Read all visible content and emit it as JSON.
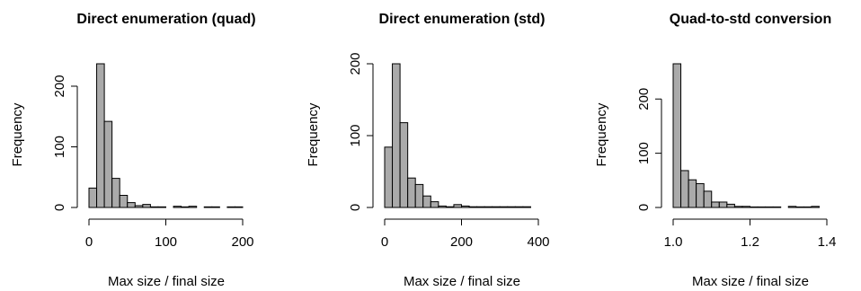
{
  "chart_data": [
    {
      "type": "histogram",
      "title": "Direct enumeration (quad)",
      "xlabel": "Max size / final size",
      "ylabel": "Frequency",
      "color": "#aaaaaa",
      "bins": [
        0,
        10,
        20,
        30,
        40,
        50,
        60,
        70,
        80,
        90,
        100,
        110,
        120,
        130,
        140,
        150,
        160,
        170,
        180,
        190,
        200
      ],
      "values": [
        32,
        237,
        142,
        48,
        20,
        8,
        3,
        5,
        1,
        1,
        0,
        2,
        1,
        2,
        0,
        1,
        1,
        0,
        1,
        1
      ],
      "xlim": [
        0,
        200
      ],
      "xticks": [
        0,
        100,
        200
      ],
      "ylim": [
        0,
        237
      ],
      "yticks": [
        0,
        100,
        200
      ]
    },
    {
      "type": "histogram",
      "title": "Direct enumeration (std)",
      "xlabel": "Max size / final size",
      "ylabel": "Frequency",
      "color": "#aaaaaa",
      "bins": [
        0,
        20,
        40,
        60,
        80,
        100,
        120,
        140,
        160,
        180,
        200,
        220,
        240,
        260,
        280,
        300,
        320,
        340,
        360,
        380
      ],
      "values": [
        84,
        200,
        118,
        41,
        32,
        16,
        8,
        2,
        1,
        4,
        2,
        1,
        1,
        1,
        1,
        1,
        1,
        1,
        1
      ],
      "xlim": [
        0,
        400
      ],
      "xticks": [
        0,
        200,
        400
      ],
      "ylim": [
        0,
        200
      ],
      "yticks": [
        0,
        100,
        200
      ]
    },
    {
      "type": "histogram",
      "title": "Quad-to-std conversion",
      "xlabel": "Max size / final size",
      "ylabel": "Frequency",
      "color": "#aaaaaa",
      "bins": [
        1.0,
        1.02,
        1.04,
        1.06,
        1.08,
        1.1,
        1.12,
        1.14,
        1.16,
        1.18,
        1.2,
        1.22,
        1.24,
        1.26,
        1.28,
        1.3,
        1.32,
        1.34,
        1.36,
        1.38
      ],
      "values": [
        265,
        68,
        51,
        44,
        30,
        10,
        10,
        6,
        2,
        2,
        1,
        1,
        1,
        1,
        0,
        2,
        1,
        1,
        2
      ],
      "xlim": [
        1.0,
        1.4
      ],
      "xticks": [
        {
          "value": 1.0,
          "label": "1.0"
        },
        {
          "value": 1.2,
          "label": "1.2"
        },
        {
          "value": 1.4,
          "label": "1.4"
        }
      ],
      "ylim": [
        0,
        265
      ],
      "yticks": [
        0,
        100,
        200
      ]
    }
  ]
}
